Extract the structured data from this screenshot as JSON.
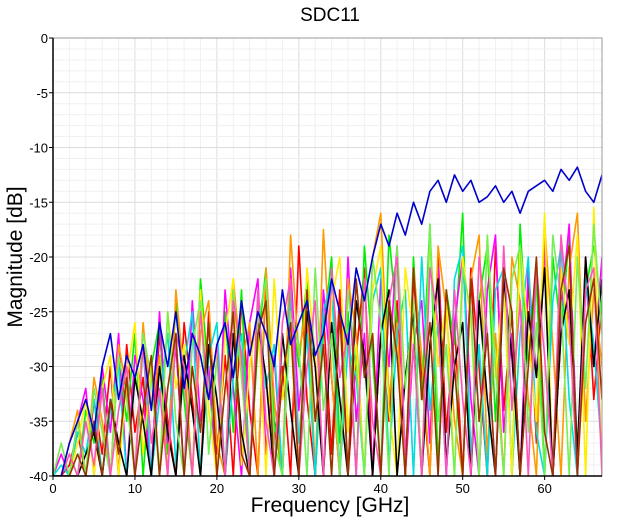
{
  "chart_data": {
    "type": "line",
    "title": "SDC11",
    "xlabel": "Frequency [GHz]",
    "ylabel": "Magnitude [dB]",
    "xlim": [
      0,
      67
    ],
    "ylim": [
      -40,
      0
    ],
    "xticks": [
      "0",
      "10",
      "20",
      "30",
      "40",
      "50",
      "60"
    ],
    "xtick_values": [
      0,
      10,
      20,
      30,
      40,
      50,
      60
    ],
    "yticks": [
      "0",
      "-5",
      "-10",
      "-15",
      "-20",
      "-25",
      "-30",
      "-35",
      "-40"
    ],
    "ytick_values": [
      0,
      -5,
      -10,
      -15,
      -20,
      -25,
      -30,
      -35,
      -40
    ],
    "grid": true,
    "legend": "none",
    "x_step_ghz": 1,
    "series": [
      {
        "color": "#0000cc",
        "values": [
          -40,
          -40,
          -37,
          -35,
          -33,
          -36,
          -30,
          -27,
          -33,
          -29,
          -31,
          -28,
          -34,
          -26,
          -30,
          -25,
          -32,
          -27,
          -29,
          -33,
          -28,
          -26,
          -31,
          -24,
          -29,
          -25,
          -27,
          -30,
          -23,
          -28,
          -26,
          -24,
          -29,
          -27,
          -22,
          -25,
          -28,
          -21,
          -24,
          -20,
          -17,
          -19,
          -16,
          -18,
          -15,
          -17,
          -14,
          -13,
          -15,
          -12.5,
          -14,
          -13,
          -15,
          -14.5,
          -13.5,
          -15,
          -14,
          -16,
          -14,
          -13.5,
          -13,
          -14,
          -12,
          -13,
          -11.8,
          -14,
          -15,
          -12.5
        ]
      },
      {
        "color": "#ff0000",
        "values": [
          -40,
          -40,
          -39,
          -36,
          -40,
          -33,
          -38,
          -30,
          -40,
          -28,
          -36,
          -31,
          -40,
          -27,
          -35,
          -40,
          -26,
          -33,
          -40,
          -25,
          -38,
          -29,
          -40,
          -24,
          -34,
          -40,
          -22,
          -37,
          -30,
          -40,
          -19,
          -33,
          -40,
          -25,
          -38,
          -23,
          -40,
          -29,
          -21,
          -40,
          -27,
          -35,
          -24,
          -40,
          -22,
          -31,
          -40,
          -20,
          -36,
          -26,
          -40,
          -21,
          -30,
          -40,
          -19,
          -34,
          -25,
          -40,
          -22,
          -37,
          -18,
          -40,
          -27,
          -23,
          -40,
          -20,
          -33,
          -24
        ]
      },
      {
        "color": "#00ee00",
        "values": [
          -40,
          -40,
          -38,
          -40,
          -34,
          -37,
          -31,
          -40,
          -29,
          -35,
          -27,
          -40,
          -30,
          -26,
          -38,
          -24,
          -33,
          -40,
          -22,
          -31,
          -40,
          -25,
          -36,
          -23,
          -40,
          -28,
          -21,
          -35,
          -40,
          -24,
          -30,
          -22,
          -40,
          -27,
          -20,
          -37,
          -25,
          -40,
          -19,
          -29,
          -40,
          -18,
          -26,
          -40,
          -20,
          -33,
          -17,
          -39,
          -23,
          -28,
          -16,
          -40,
          -24,
          -19,
          -35,
          -21,
          -40,
          -17,
          -30,
          -22,
          -40,
          -20,
          -27,
          -18,
          -38,
          -23,
          -19,
          -25
        ]
      },
      {
        "color": "#ff00ff",
        "values": [
          -40,
          -38,
          -40,
          -35,
          -32,
          -40,
          -30,
          -36,
          -27,
          -40,
          -29,
          -33,
          -40,
          -25,
          -37,
          -28,
          -40,
          -24,
          -35,
          -30,
          -40,
          -23,
          -32,
          -40,
          -26,
          -22,
          -38,
          -29,
          -40,
          -21,
          -34,
          -26,
          -40,
          -23,
          -31,
          -40,
          -20,
          -35,
          -27,
          -40,
          -22,
          -30,
          -19,
          -40,
          -28,
          -24,
          -37,
          -21,
          -40,
          -26,
          -20,
          -33,
          -40,
          -23,
          -18,
          -36,
          -27,
          -40,
          -21,
          -31,
          -19,
          -40,
          -25,
          -17,
          -39,
          -22,
          -30,
          -20
        ]
      },
      {
        "color": "#ff9900",
        "values": [
          -40,
          -40,
          -37,
          -34,
          -40,
          -31,
          -35,
          -40,
          -28,
          -32,
          -40,
          -26,
          -34,
          -29,
          -40,
          -23,
          -31,
          -40,
          -27,
          -24,
          -37,
          -40,
          -22,
          -30,
          -26,
          -40,
          -21,
          -33,
          -40,
          -18,
          -29,
          -24,
          -40,
          -17.5,
          -31,
          -40,
          -22,
          -27,
          -40,
          -20,
          -16,
          -33,
          -26,
          -40,
          -21,
          -29,
          -40,
          -19,
          -25,
          -35,
          -40,
          -22,
          -18,
          -38,
          -27,
          -40,
          -20,
          -24,
          -33,
          -40,
          -17,
          -28,
          -40,
          -21,
          -16,
          -35,
          -23,
          -30
        ]
      },
      {
        "color": "#00dddd",
        "values": [
          -40,
          -39,
          -40,
          -36,
          -38,
          -33,
          -40,
          -34,
          -30,
          -40,
          -31,
          -28,
          -40,
          -33,
          -27,
          -39,
          -30,
          -25,
          -40,
          -29,
          -26,
          -40,
          -31,
          -27,
          -40,
          -24,
          -32,
          -28,
          -40,
          -23,
          -37,
          -27,
          -40,
          -25,
          -22,
          -40,
          -28,
          -31,
          -40,
          -24,
          -21,
          -39,
          -27,
          -23,
          -40,
          -20,
          -34,
          -26,
          -40,
          -22,
          -19,
          -38,
          -28,
          -40,
          -23,
          -21,
          -40,
          -27,
          -20,
          -36,
          -40,
          -24,
          -19,
          -33,
          -40,
          -22,
          -28,
          -38
        ]
      },
      {
        "color": "#ffee00",
        "values": [
          -40,
          -40,
          -40,
          -37,
          -33,
          -40,
          -32,
          -29,
          -40,
          -31,
          -26,
          -38,
          -30,
          -40,
          -25,
          -32,
          -28,
          -40,
          -23,
          -34,
          -40,
          -27,
          -22,
          -39,
          -30,
          -25,
          -40,
          -22,
          -33,
          -27,
          -40,
          -21,
          -29,
          -40,
          -24,
          -20,
          -36,
          -28,
          -40,
          -23,
          -19,
          -34,
          -40,
          -21,
          -27,
          -40,
          -18,
          -30,
          -24,
          -40,
          -20,
          -26,
          -40,
          -18,
          -31,
          -22,
          -40,
          -19,
          -27,
          -35,
          -16,
          -40,
          -21,
          -28,
          -18,
          -40,
          -15.5,
          -40
        ]
      },
      {
        "color": "#000000",
        "values": [
          -40,
          -40,
          -40,
          -40,
          -38,
          -36,
          -40,
          -33,
          -37,
          -40,
          -31,
          -35,
          -40,
          -30,
          -36,
          -40,
          -29,
          -34,
          -40,
          -28,
          -33,
          -40,
          -27,
          -36,
          -40,
          -26,
          -31,
          -40,
          -27,
          -34,
          -40,
          -25,
          -30,
          -40,
          -26,
          -33,
          -40,
          -24,
          -29,
          -40,
          -27,
          -23,
          -40,
          -31,
          -25,
          -40,
          -28,
          -22,
          -39,
          -30,
          -26,
          -40,
          -24,
          -33,
          -40,
          -22,
          -29,
          -40,
          -25,
          -31,
          -21,
          -40,
          -27,
          -23,
          -38,
          -20,
          -30,
          -22
        ]
      },
      {
        "color": "#77ee55",
        "values": [
          -40,
          -37,
          -40,
          -35,
          -40,
          -32,
          -36,
          -40,
          -29,
          -33,
          -40,
          -27,
          -31,
          -40,
          -25,
          -35,
          -40,
          -28,
          -24,
          -38,
          -29,
          -40,
          -23,
          -31,
          -40,
          -26,
          -22,
          -37,
          -40,
          -25,
          -28,
          -40,
          -21,
          -34,
          -27,
          -40,
          -23,
          -30,
          -40,
          -20,
          -26,
          -40,
          -19,
          -32,
          -24,
          -40,
          -17,
          -35,
          -28,
          -40,
          -21,
          -25,
          -40,
          -18,
          -30,
          -40,
          -22,
          -19,
          -36,
          -26,
          -40,
          -18,
          -24,
          -40,
          -20,
          -32,
          -17,
          -27
        ]
      },
      {
        "color": "#ff55bb",
        "values": [
          -40,
          -40,
          -38,
          -40,
          -35,
          -39,
          -32,
          -40,
          -34,
          -30,
          -40,
          -28,
          -37,
          -32,
          -40,
          -27,
          -30,
          -40,
          -25,
          -33,
          -28,
          -40,
          -24,
          -29,
          -40,
          -23,
          -35,
          -40,
          -26,
          -22,
          -40,
          -30,
          -24,
          -40,
          -21,
          -31,
          -27,
          -40,
          -22,
          -35,
          -40,
          -24,
          -20,
          -38,
          -28,
          -40,
          -21,
          -26,
          -40,
          -23,
          -33,
          -40,
          -20,
          -27,
          -40,
          -19,
          -34,
          -24,
          -40,
          -21,
          -29,
          -40,
          -18,
          -26,
          -40,
          -23,
          -21,
          -40
        ]
      },
      {
        "color": "#993300",
        "values": [
          -40,
          -40,
          -40,
          -38,
          -40,
          -35,
          -40,
          -33,
          -38,
          -31,
          -40,
          -34,
          -29,
          -40,
          -32,
          -27,
          -40,
          -30,
          -36,
          -26,
          -40,
          -32,
          -25,
          -38,
          -40,
          -27,
          -24,
          -40,
          -31,
          -26,
          -40,
          -23,
          -35,
          -28,
          -40,
          -25,
          -40,
          -22,
          -31,
          -27,
          -40,
          -24,
          -29,
          -40,
          -21,
          -33,
          -26,
          -40,
          -23,
          -30,
          -40,
          -22,
          -35,
          -27,
          -40,
          -21,
          -25,
          -40,
          -30,
          -20,
          -36,
          -40,
          -23,
          -19,
          -40,
          -26,
          -22,
          -33
        ]
      }
    ]
  }
}
